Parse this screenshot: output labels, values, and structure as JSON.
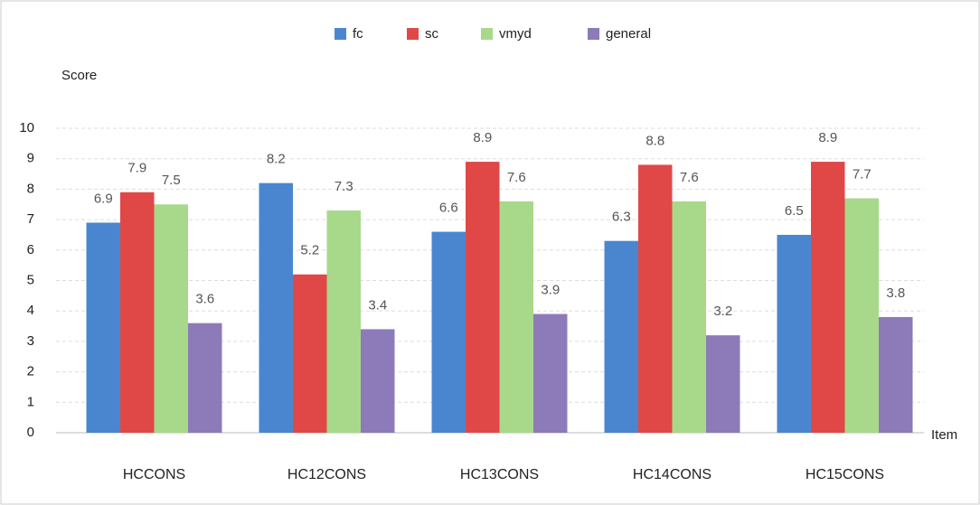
{
  "chart_data": {
    "type": "bar",
    "y_label": "Score",
    "x_label": "Item",
    "categories": [
      "HCCONS",
      "HC12CONS",
      "HC13CONS",
      "HC14CONS",
      "HC15CONS"
    ],
    "series": [
      {
        "name": "fc",
        "color": "#4a86d0",
        "values": [
          6.9,
          8.2,
          6.6,
          6.3,
          6.5
        ]
      },
      {
        "name": "sc",
        "color": "#e04848",
        "values": [
          7.9,
          5.2,
          8.9,
          8.8,
          8.9
        ]
      },
      {
        "name": "vmyd",
        "color": "#a8d98a",
        "values": [
          7.5,
          7.3,
          7.6,
          7.6,
          7.7
        ]
      },
      {
        "name": "general",
        "color": "#8c7bb8",
        "values": [
          3.6,
          3.4,
          3.9,
          3.2,
          3.8
        ]
      }
    ],
    "ylim": [
      0,
      10
    ],
    "yticks": [
      0,
      1,
      2,
      3,
      4,
      5,
      6,
      7,
      8,
      9,
      10
    ],
    "grid": true,
    "legend": "top"
  }
}
